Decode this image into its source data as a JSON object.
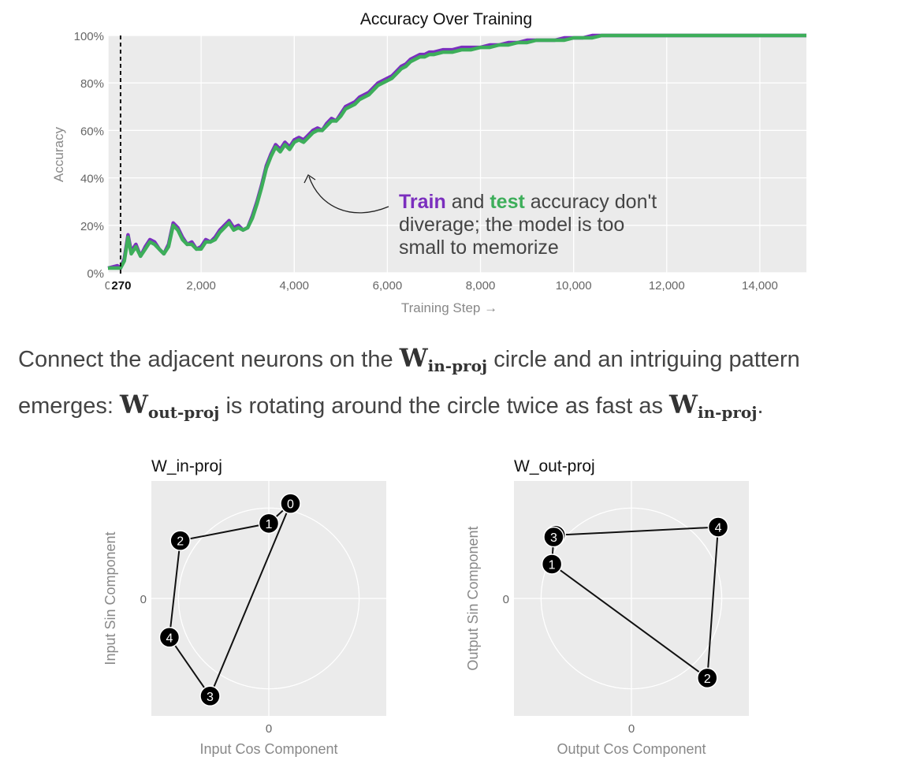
{
  "chart_data": [
    {
      "type": "line",
      "title": "Accuracy Over Training",
      "xlabel": "Training Step →",
      "ylabel": "Accuracy",
      "xlim": [
        0,
        15000
      ],
      "ylim": [
        0,
        1
      ],
      "x_ticks": [
        "0",
        "2,000",
        "4,000",
        "6,000",
        "8,000",
        "10,000",
        "12,000",
        "14,000"
      ],
      "x_tick_values": [
        0,
        2000,
        4000,
        6000,
        8000,
        10000,
        12000,
        14000
      ],
      "y_ticks": [
        "0%",
        "20%",
        "40%",
        "60%",
        "80%",
        "100%"
      ],
      "y_tick_values": [
        0,
        0.2,
        0.4,
        0.6,
        0.8,
        1.0
      ],
      "marker": {
        "x": 270,
        "label": "270"
      },
      "series": [
        {
          "name": "Train",
          "color": "#7b2fbe",
          "x": [
            0,
            200,
            270,
            350,
            430,
            500,
            600,
            700,
            800,
            900,
            1000,
            1100,
            1200,
            1300,
            1400,
            1500,
            1600,
            1700,
            1800,
            1900,
            2000,
            2100,
            2200,
            2300,
            2400,
            2500,
            2600,
            2700,
            2800,
            2900,
            3000,
            3100,
            3200,
            3300,
            3400,
            3500,
            3600,
            3700,
            3800,
            3900,
            4000,
            4100,
            4200,
            4300,
            4400,
            4500,
            4600,
            4700,
            4800,
            4900,
            5000,
            5100,
            5200,
            5300,
            5400,
            5500,
            5600,
            5700,
            5800,
            5900,
            6000,
            6100,
            6200,
            6300,
            6400,
            6500,
            6600,
            6700,
            6800,
            6900,
            7000,
            7200,
            7400,
            7600,
            7800,
            8000,
            8200,
            8400,
            8600,
            8800,
            9000,
            9200,
            9400,
            9600,
            9800,
            10000,
            10200,
            10400,
            10600,
            11000,
            11500,
            12000,
            12500,
            13000,
            13500,
            14000,
            14500,
            15000
          ],
          "y": [
            0.02,
            0.03,
            0.02,
            0.06,
            0.16,
            0.09,
            0.12,
            0.07,
            0.11,
            0.14,
            0.13,
            0.1,
            0.08,
            0.12,
            0.21,
            0.19,
            0.15,
            0.12,
            0.13,
            0.1,
            0.11,
            0.14,
            0.13,
            0.15,
            0.18,
            0.2,
            0.22,
            0.19,
            0.2,
            0.18,
            0.19,
            0.24,
            0.3,
            0.37,
            0.45,
            0.5,
            0.54,
            0.52,
            0.55,
            0.53,
            0.56,
            0.57,
            0.56,
            0.58,
            0.6,
            0.61,
            0.6,
            0.63,
            0.65,
            0.64,
            0.67,
            0.7,
            0.71,
            0.72,
            0.74,
            0.75,
            0.76,
            0.78,
            0.8,
            0.81,
            0.82,
            0.83,
            0.85,
            0.87,
            0.88,
            0.9,
            0.91,
            0.92,
            0.92,
            0.93,
            0.93,
            0.94,
            0.94,
            0.95,
            0.95,
            0.95,
            0.96,
            0.96,
            0.97,
            0.97,
            0.98,
            0.98,
            0.98,
            0.98,
            0.99,
            0.99,
            0.99,
            1.0,
            1.0,
            1.0,
            1.0,
            1.0,
            1.0,
            1.0,
            1.0,
            1.0,
            1.0,
            1.0
          ]
        },
        {
          "name": "Test",
          "color": "#3dae5a",
          "x": [
            0,
            200,
            270,
            350,
            430,
            500,
            600,
            700,
            800,
            900,
            1000,
            1100,
            1200,
            1300,
            1400,
            1500,
            1600,
            1700,
            1800,
            1900,
            2000,
            2100,
            2200,
            2300,
            2400,
            2500,
            2600,
            2700,
            2800,
            2900,
            3000,
            3100,
            3200,
            3300,
            3400,
            3500,
            3600,
            3700,
            3800,
            3900,
            4000,
            4100,
            4200,
            4300,
            4400,
            4500,
            4600,
            4700,
            4800,
            4900,
            5000,
            5100,
            5200,
            5300,
            5400,
            5500,
            5600,
            5700,
            5800,
            5900,
            6000,
            6100,
            6200,
            6300,
            6400,
            6500,
            6600,
            6700,
            6800,
            6900,
            7000,
            7200,
            7400,
            7600,
            7800,
            8000,
            8200,
            8400,
            8600,
            8800,
            9000,
            9200,
            9400,
            9600,
            9800,
            10000,
            10200,
            10400,
            10600,
            11000,
            11500,
            12000,
            12500,
            13000,
            13500,
            14000,
            14500,
            15000
          ],
          "y": [
            0.02,
            0.02,
            0.02,
            0.05,
            0.15,
            0.08,
            0.11,
            0.07,
            0.1,
            0.13,
            0.12,
            0.1,
            0.08,
            0.11,
            0.2,
            0.18,
            0.14,
            0.12,
            0.12,
            0.1,
            0.1,
            0.13,
            0.13,
            0.14,
            0.17,
            0.19,
            0.21,
            0.18,
            0.19,
            0.18,
            0.19,
            0.23,
            0.29,
            0.36,
            0.44,
            0.49,
            0.53,
            0.51,
            0.54,
            0.52,
            0.55,
            0.56,
            0.55,
            0.57,
            0.59,
            0.6,
            0.6,
            0.62,
            0.64,
            0.64,
            0.66,
            0.69,
            0.7,
            0.71,
            0.73,
            0.74,
            0.75,
            0.77,
            0.79,
            0.8,
            0.81,
            0.82,
            0.84,
            0.86,
            0.87,
            0.89,
            0.9,
            0.91,
            0.91,
            0.92,
            0.92,
            0.93,
            0.93,
            0.94,
            0.94,
            0.95,
            0.95,
            0.96,
            0.96,
            0.97,
            0.97,
            0.98,
            0.98,
            0.98,
            0.98,
            0.99,
            0.99,
            0.99,
            1.0,
            1.0,
            1.0,
            1.0,
            1.0,
            1.0,
            1.0,
            1.0,
            1.0,
            1.0
          ]
        }
      ],
      "annotation": {
        "lines": [
          [
            {
              "text": "Train",
              "color": "#7b2fbe",
              "bold": true
            },
            {
              "text": " and ",
              "color": "#444"
            },
            {
              "text": "test",
              "color": "#3dae5a",
              "bold": true
            },
            {
              "text": " accuracy don't",
              "color": "#444"
            }
          ],
          [
            {
              "text": "diverage; the model is too",
              "color": "#444"
            }
          ],
          [
            {
              "text": "small to memorize",
              "color": "#444"
            }
          ]
        ]
      }
    },
    {
      "type": "scatter",
      "title": "W_in-proj",
      "xlabel": "Input Cos Component",
      "ylabel": "Input Sin Component",
      "x_ticks": [
        "0"
      ],
      "y_ticks": [
        "0"
      ],
      "xlim": [
        -1.3,
        1.3
      ],
      "ylim": [
        -1.3,
        1.3
      ],
      "points": [
        {
          "label": "0",
          "x": 0.24,
          "y": 1.05
        },
        {
          "label": "1",
          "x": 0.0,
          "y": 0.83
        },
        {
          "label": "2",
          "x": -0.98,
          "y": 0.64
        },
        {
          "label": "3",
          "x": -0.65,
          "y": -1.08
        },
        {
          "label": "4",
          "x": -1.1,
          "y": -0.43
        }
      ],
      "path_order": [
        "0",
        "1",
        "2",
        "4",
        "3",
        "0"
      ]
    },
    {
      "type": "scatter",
      "title": "W_out-proj",
      "xlabel": "Output Cos Component",
      "ylabel": "Output Sin Component",
      "x_ticks": [
        "0"
      ],
      "y_ticks": [
        "0"
      ],
      "xlim": [
        -1.3,
        1.3
      ],
      "ylim": [
        -1.3,
        1.3
      ],
      "points": [
        {
          "label": "0",
          "x": -0.84,
          "y": 0.7
        },
        {
          "label": "1",
          "x": -0.88,
          "y": 0.38
        },
        {
          "label": "2",
          "x": 0.84,
          "y": -0.88
        },
        {
          "label": "3",
          "x": -0.86,
          "y": 0.68
        },
        {
          "label": "4",
          "x": 0.96,
          "y": 0.79
        }
      ],
      "path_order": [
        "0",
        "4",
        "2",
        "1",
        "3",
        "0"
      ]
    }
  ],
  "prose": {
    "part1": "Connect the adjacent neurons on the ",
    "w1": "W",
    "sub1": "in-proj",
    "part2": " circle and an intriguing pattern emerges: ",
    "w2": "W",
    "sub2": "out-proj",
    "part3": " is rotating around the circle twice as fast as ",
    "w3": "W",
    "sub3": "in-proj",
    "part4": "."
  }
}
